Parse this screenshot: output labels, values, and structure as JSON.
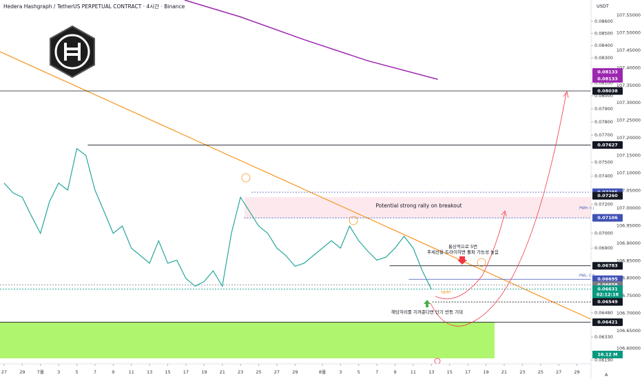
{
  "chart_data": {
    "type": "line",
    "title": "Hedera Hashgraph / TetherUS PERPETUAL CONTRACT · 4시간 · Binance",
    "unit": "USDT",
    "log_scale": true,
    "x": [
      0,
      1,
      2,
      3,
      4,
      5,
      6,
      7,
      8,
      9,
      10,
      11,
      12,
      13,
      14,
      15,
      16,
      17,
      18,
      19,
      20,
      21,
      22,
      23,
      24,
      25,
      26,
      27,
      28,
      29,
      30,
      31,
      32,
      33,
      34,
      35,
      36,
      37,
      38,
      39,
      40,
      41,
      42,
      43,
      44,
      45,
      46,
      47
    ],
    "series": [
      {
        "color": "#26a69a",
        "values": [
          0.0735,
          0.0728,
          0.0725,
          0.0712,
          0.07,
          0.0722,
          0.0735,
          0.073,
          0.076,
          0.0755,
          0.073,
          0.0715,
          0.07,
          0.0705,
          0.069,
          0.0685,
          0.068,
          0.0695,
          0.068,
          0.0682,
          0.067,
          0.0665,
          0.0668,
          0.0675,
          0.0665,
          0.07,
          0.0725,
          0.0715,
          0.0705,
          0.07,
          0.069,
          0.0685,
          0.0678,
          0.068,
          0.0685,
          0.069,
          0.0695,
          0.069,
          0.0705,
          0.0695,
          0.0688,
          0.0682,
          0.0684,
          0.069,
          0.0698,
          0.069,
          0.0675,
          0.0663
        ]
      },
      {
        "color": "#9c27b0",
        "axis": "y2",
        "x": [
          19.85,
          26,
          33,
          40,
          47.7
        ],
        "values": [
          107.593,
          107.545,
          107.48,
          107.42,
          107.367
        ]
      }
    ],
    "trendline": {
      "color": "#f7931a",
      "x": [
        -0.45,
        64.55
      ],
      "values": [
        0.0835,
        0.0644
      ]
    },
    "xlim": [
      -0.45,
      64.55
    ],
    "xticks": [
      {
        "value": 0,
        "label": "27"
      },
      {
        "value": 2,
        "label": "29"
      },
      {
        "value": 4,
        "label": "7월"
      },
      {
        "value": 6,
        "label": "3"
      },
      {
        "value": 8,
        "label": "5"
      },
      {
        "value": 10,
        "label": "7"
      },
      {
        "value": 12,
        "label": "9"
      },
      {
        "value": 14,
        "label": "11"
      },
      {
        "value": 16,
        "label": "13"
      },
      {
        "value": 18,
        "label": "15"
      },
      {
        "value": 20,
        "label": "17"
      },
      {
        "value": 22,
        "label": "19"
      },
      {
        "value": 24,
        "label": "21"
      },
      {
        "value": 26,
        "label": "23"
      },
      {
        "value": 28,
        "label": "25"
      },
      {
        "value": 30,
        "label": "27"
      },
      {
        "value": 32,
        "label": "29"
      },
      {
        "value": 35,
        "label": "8월"
      },
      {
        "value": 37,
        "label": "3"
      },
      {
        "value": 39,
        "label": "5"
      },
      {
        "value": 41,
        "label": "7"
      },
      {
        "value": 43,
        "label": "9"
      },
      {
        "value": 45,
        "label": "11"
      },
      {
        "value": 47,
        "label": "13"
      },
      {
        "value": 49,
        "label": "15"
      },
      {
        "value": 51,
        "label": "17"
      },
      {
        "value": 53,
        "label": "19"
      },
      {
        "value": 55,
        "label": "21"
      },
      {
        "value": 57,
        "label": "23"
      },
      {
        "value": 59,
        "label": "25"
      },
      {
        "value": 61,
        "label": "27"
      },
      {
        "value": 63,
        "label": "29"
      }
    ],
    "ylim": [
      0.06167,
      0.0878
    ],
    "yticks": [
      {
        "value": 0.086,
        "label": "0.08600"
      },
      {
        "value": 0.085,
        "label": "0.08500"
      },
      {
        "value": 0.084,
        "label": "0.08400"
      },
      {
        "value": 0.083,
        "label": "0.08300"
      },
      {
        "value": 0.081,
        "label": "0.08100"
      },
      {
        "value": 0.08,
        "label": "0.08000"
      },
      {
        "value": 0.079,
        "label": "0.07900"
      },
      {
        "value": 0.078,
        "label": "0.07800"
      },
      {
        "value": 0.077,
        "label": "0.07700"
      },
      {
        "value": 0.075,
        "label": "0.07500"
      },
      {
        "value": 0.074,
        "label": "0.07400"
      },
      {
        "value": 0.072,
        "label": "0.07200"
      },
      {
        "value": 0.07,
        "label": "0.07000"
      },
      {
        "value": 0.069,
        "label": "0.06900"
      },
      {
        "value": 0.0648,
        "label": "0.06480"
      },
      {
        "value": 0.0633,
        "label": "0.06330"
      },
      {
        "value": 0.0619,
        "label": "0.06190"
      }
    ],
    "y2lim": [
      106.5559,
      107.5932
    ],
    "y2ticks": [
      {
        "value": 107.55,
        "label": "107.55000"
      },
      {
        "value": 107.5,
        "label": "107.50000"
      },
      {
        "value": 107.45,
        "label": "107.45000"
      },
      {
        "value": 107.4,
        "label": "107.40000"
      },
      {
        "value": 107.35,
        "label": "107.35000"
      },
      {
        "value": 107.3,
        "label": "107.30000"
      },
      {
        "value": 107.25,
        "label": "107.25000"
      },
      {
        "value": 107.2,
        "label": "107.20000"
      },
      {
        "value": 107.15,
        "label": "107.15000"
      },
      {
        "value": 107.1,
        "label": "107.10000"
      },
      {
        "value": 107.05,
        "label": "107.05000"
      },
      {
        "value": 107,
        "label": "107.00000"
      },
      {
        "value": 106.95,
        "label": "106.95000"
      },
      {
        "value": 106.9,
        "label": "106.90000"
      },
      {
        "value": 106.85,
        "label": "106.85000"
      },
      {
        "value": 106.8,
        "label": "106.80000"
      },
      {
        "value": 106.75,
        "label": "106.75000"
      },
      {
        "value": 106.7,
        "label": "106.70000"
      },
      {
        "value": 106.65,
        "label": "106.65000"
      },
      {
        "value": 106.6,
        "label": "106.60000"
      }
    ],
    "levels": [
      {
        "value": 0.08133,
        "label": "0.08133",
        "color": "#9c27b0",
        "style": "none",
        "start": 64.55
      },
      {
        "value": 0.08133,
        "label": "0.08133",
        "color": "#9c27b0",
        "style": "none",
        "start": 64.55
      },
      {
        "value": 0.08038,
        "label": "0.08038",
        "color": "#131722",
        "style": "solid",
        "start": -0.45
      },
      {
        "value": 0.07627,
        "label": "0.07627",
        "color": "#131722",
        "style": "solid",
        "start": 9.2
      },
      {
        "value": 0.07285,
        "label": "0.07285",
        "color": "#3f51b5",
        "style": "dotted",
        "start": 27.2
      },
      {
        "value": 0.0726,
        "label": "0.07260",
        "color": "#131722",
        "style": "none",
        "start": 26.4
      },
      {
        "value": 0.07106,
        "label": "0.07106",
        "color": "#3f51b5",
        "style": "dotted",
        "start": 26.4
      },
      {
        "value": 0.06783,
        "label": "0.06783",
        "color": "#131722",
        "style": "solid",
        "start": 42.4
      },
      {
        "value": 0.06695,
        "label": "0.06695",
        "color": "#3f51b5",
        "style": "solid",
        "start": 44.5
      },
      {
        "value": 0.06658,
        "label": "0.06658",
        "color": "#787b86",
        "style": "dotted",
        "start": -0.45
      },
      {
        "value": 0.06631,
        "label": "0.06631",
        "color": "#089981",
        "style": "dotted",
        "start": -0.45
      },
      {
        "value": 0.06549,
        "label": "0.06549",
        "color": "#131722",
        "style": "dotted",
        "start": 47.1
      },
      {
        "value": 0.06421,
        "label": "0.06421",
        "color": "#131722",
        "style": "solid",
        "start": -0.45
      }
    ],
    "countdown": "02:12:18",
    "volume_label": "16.12 M",
    "annotations": {
      "rally": "Potential strong rally on breakout",
      "trend_1": "통상적으로 5번",
      "trend_2": "추세선을 트라이하면 돌파 가능성 높음",
      "support": "해당자리를 지켜준다면 단기 반등 기대",
      "open": "open",
      "pwh": "PWH: 0.(",
      "pwl": "PWL: 0.0",
      "scale_mode": "A"
    }
  }
}
